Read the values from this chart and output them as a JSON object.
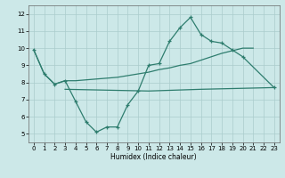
{
  "xlabel": "Humidex (Indice chaleur)",
  "x": [
    0,
    1,
    2,
    3,
    4,
    5,
    6,
    7,
    8,
    9,
    10,
    11,
    12,
    13,
    14,
    15,
    16,
    17,
    18,
    19,
    20,
    21,
    22,
    23
  ],
  "line1_x": [
    0,
    1,
    2,
    3,
    4,
    5,
    6,
    7,
    8,
    9,
    10,
    11,
    12,
    13,
    14,
    15,
    16,
    17,
    18,
    19,
    20,
    23
  ],
  "line1_y": [
    9.9,
    8.5,
    7.9,
    8.1,
    6.9,
    5.7,
    5.1,
    5.4,
    5.4,
    6.7,
    7.5,
    9.0,
    9.1,
    10.4,
    11.2,
    11.8,
    10.8,
    10.4,
    10.3,
    9.9,
    9.5,
    7.7
  ],
  "line2_x": [
    0,
    1,
    2,
    3,
    4,
    5,
    6,
    7,
    8,
    9,
    10,
    11,
    12,
    13,
    14,
    15,
    16,
    17,
    18,
    19,
    20,
    21
  ],
  "line2_y": [
    9.9,
    8.5,
    7.9,
    8.1,
    8.1,
    8.15,
    8.2,
    8.25,
    8.3,
    8.4,
    8.5,
    8.6,
    8.75,
    8.85,
    9.0,
    9.1,
    9.3,
    9.5,
    9.7,
    9.85,
    10.0,
    10.0
  ],
  "line3_x": [
    3,
    11,
    16,
    23
  ],
  "line3_y": [
    7.6,
    7.5,
    7.6,
    7.7
  ],
  "ylim": [
    4.5,
    12.5
  ],
  "xlim": [
    -0.5,
    23.5
  ],
  "yticks": [
    5,
    6,
    7,
    8,
    9,
    10,
    11,
    12
  ],
  "xticks": [
    0,
    1,
    2,
    3,
    4,
    5,
    6,
    7,
    8,
    9,
    10,
    11,
    12,
    13,
    14,
    15,
    16,
    17,
    18,
    19,
    20,
    21,
    22,
    23
  ],
  "line_color": "#2e7d6e",
  "bg_color": "#cce8e8",
  "grid_color": "#aacccc"
}
